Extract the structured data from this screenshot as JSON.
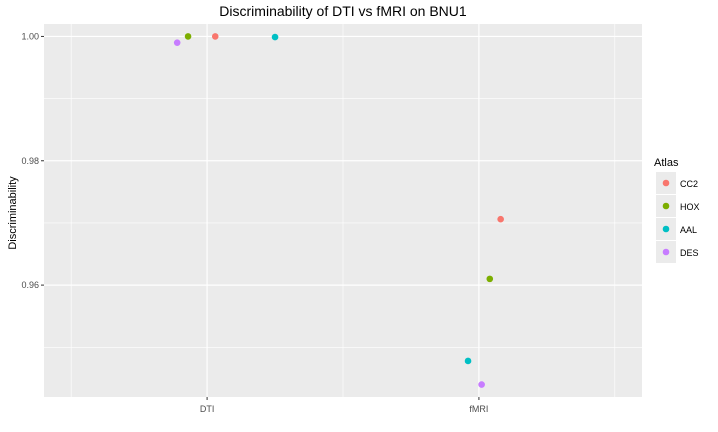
{
  "chart_data": {
    "type": "scatter",
    "title": "Discriminability of DTI vs fMRI on BNU1",
    "xlabel": "",
    "ylabel": "Discriminability",
    "categories": [
      "DTI",
      "fMRI"
    ],
    "ylim": [
      0.942,
      1.002
    ],
    "yticks": [
      0.96,
      0.98,
      1.0
    ],
    "ytick_labels": [
      "0.96",
      "0.98",
      "1.00"
    ],
    "grid": true,
    "legend": {
      "title": "Atlas",
      "position": "right"
    },
    "colors": {
      "CC2": "#F8766D",
      "HOX": "#7CAE00",
      "AAL": "#00BFC4",
      "DES": "#C77CFF",
      "panel_bg": "#EBEBEB",
      "grid": "#FFFFFF"
    },
    "series": [
      {
        "name": "CC2",
        "points": [
          {
            "category": "DTI",
            "jitter": 0.03,
            "y": 1.0
          },
          {
            "category": "fMRI",
            "jitter": 0.08,
            "y": 0.9706
          }
        ]
      },
      {
        "name": "HOX",
        "points": [
          {
            "category": "DTI",
            "jitter": -0.07,
            "y": 1.0
          },
          {
            "category": "fMRI",
            "jitter": 0.04,
            "y": 0.961
          }
        ]
      },
      {
        "name": "AAL",
        "points": [
          {
            "category": "DTI",
            "jitter": 0.25,
            "y": 0.9999
          },
          {
            "category": "fMRI",
            "jitter": -0.04,
            "y": 0.9478
          }
        ]
      },
      {
        "name": "DES",
        "points": [
          {
            "category": "DTI",
            "jitter": -0.11,
            "y": 0.999
          },
          {
            "category": "fMRI",
            "jitter": 0.01,
            "y": 0.944
          }
        ]
      }
    ]
  }
}
